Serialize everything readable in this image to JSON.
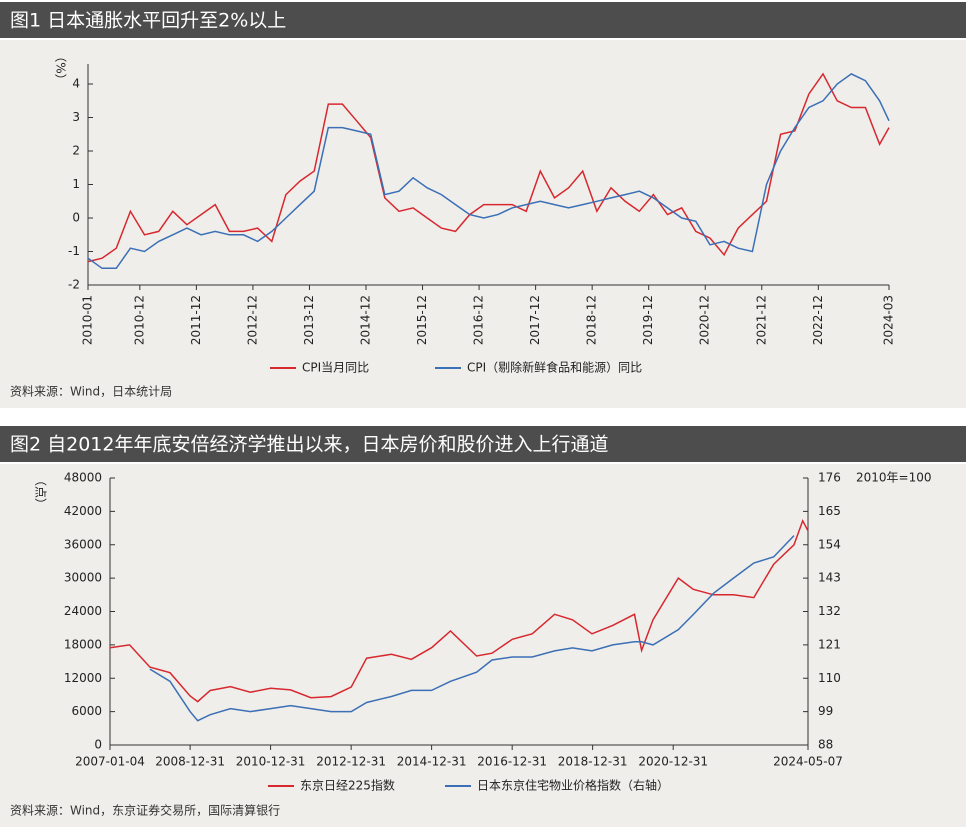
{
  "chart_data": [
    {
      "type": "line",
      "title": "图1  日本通胀水平回升至2%以上",
      "ylabel": "（%）",
      "source": "资料来源：Wind，日本统计局",
      "x": [
        "2010-01",
        "2010-04",
        "2010-07",
        "2010-10",
        "2011-01",
        "2011-04",
        "2011-07",
        "2011-10",
        "2012-01",
        "2012-04",
        "2012-07",
        "2012-10",
        "2013-01",
        "2013-04",
        "2013-07",
        "2013-10",
        "2014-01",
        "2014-04",
        "2014-07",
        "2014-10",
        "2015-01",
        "2015-04",
        "2015-07",
        "2015-10",
        "2016-01",
        "2016-04",
        "2016-07",
        "2016-10",
        "2017-01",
        "2017-04",
        "2017-07",
        "2017-10",
        "2018-01",
        "2018-04",
        "2018-07",
        "2018-10",
        "2019-01",
        "2019-04",
        "2019-07",
        "2019-10",
        "2020-01",
        "2020-04",
        "2020-07",
        "2020-10",
        "2021-01",
        "2021-04",
        "2021-07",
        "2021-10",
        "2022-01",
        "2022-04",
        "2022-07",
        "2022-10",
        "2023-01",
        "2023-04",
        "2023-07",
        "2023-10",
        "2024-01",
        "2024-03"
      ],
      "series": [
        {
          "name": "CPI当月同比",
          "color": "#d7282f",
          "values": [
            -1.3,
            -1.2,
            -0.9,
            0.2,
            -0.5,
            -0.4,
            0.2,
            -0.2,
            0.1,
            0.4,
            -0.4,
            -0.4,
            -0.3,
            -0.7,
            0.7,
            1.1,
            1.4,
            3.4,
            3.4,
            2.9,
            2.4,
            0.6,
            0.2,
            0.3,
            0.0,
            -0.3,
            -0.4,
            0.1,
            0.4,
            0.4,
            0.4,
            0.2,
            1.4,
            0.6,
            0.9,
            1.4,
            0.2,
            0.9,
            0.5,
            0.2,
            0.7,
            0.1,
            0.3,
            -0.4,
            -0.6,
            -1.1,
            -0.3,
            0.1,
            0.5,
            2.5,
            2.6,
            3.7,
            4.3,
            3.5,
            3.3,
            3.3,
            2.2,
            2.7
          ]
        },
        {
          "name": "CPI（剔除新鲜食品和能源）同比",
          "color": "#3b6fb6",
          "values": [
            -1.2,
            -1.5,
            -1.5,
            -0.9,
            -1.0,
            -0.7,
            -0.5,
            -0.3,
            -0.5,
            -0.4,
            -0.5,
            -0.5,
            -0.7,
            -0.4,
            0.0,
            0.4,
            0.8,
            2.7,
            2.7,
            2.6,
            2.5,
            0.7,
            0.8,
            1.2,
            0.9,
            0.7,
            0.4,
            0.1,
            0.0,
            0.1,
            0.3,
            0.4,
            0.5,
            0.4,
            0.3,
            0.4,
            0.5,
            0.6,
            0.7,
            0.8,
            0.6,
            0.3,
            0.0,
            -0.1,
            -0.8,
            -0.7,
            -0.9,
            -1.0,
            1.0,
            2.0,
            2.7,
            3.3,
            3.5,
            4.0,
            4.3,
            4.1,
            3.5,
            2.9
          ]
        }
      ],
      "xlim": [
        "2010-01",
        "2024-03"
      ],
      "xticks": [
        "2010-01",
        "2010-12",
        "2011-12",
        "2012-12",
        "2013-12",
        "2014-12",
        "2015-12",
        "2016-12",
        "2017-12",
        "2018-12",
        "2019-12",
        "2020-12",
        "2021-12",
        "2022-12",
        "2024-03"
      ],
      "ylim": [
        -2,
        4
      ],
      "yticks": [
        -2,
        -1,
        0,
        1,
        2,
        3,
        4
      ]
    },
    {
      "type": "line",
      "title": "图2  自2012年年底安倍经济学推出以来，日本房价和股价进入上行通道",
      "ylabel": "（点）",
      "y2label": "2010年=100",
      "source": "资料来源：Wind，东京证券交易所，国际清算银行",
      "x": [
        "2007-01-04",
        "2007-07-01",
        "2008-01-01",
        "2008-07-01",
        "2008-12-31",
        "2009-03-10",
        "2009-07-01",
        "2010-01-01",
        "2010-07-01",
        "2011-01-01",
        "2011-07-01",
        "2012-01-01",
        "2012-07-01",
        "2012-12-31",
        "2013-05-20",
        "2013-12-31",
        "2014-07-01",
        "2014-12-31",
        "2015-06-20",
        "2016-02-12",
        "2016-07-01",
        "2017-01-01",
        "2017-07-01",
        "2018-01-20",
        "2018-07-01",
        "2018-12-25",
        "2019-07-01",
        "2020-01-15",
        "2020-03-19",
        "2020-07-01",
        "2021-02-15",
        "2021-07-01",
        "2022-01-01",
        "2022-07-01",
        "2023-01-01",
        "2023-07-01",
        "2024-01-01",
        "2024-03-20",
        "2024-05-07"
      ],
      "series": [
        {
          "name": "东京日经225指数",
          "color": "#d7282f",
          "values": [
            17500,
            18000,
            14000,
            13000,
            8800,
            7800,
            9800,
            10500,
            9500,
            10200,
            9900,
            8500,
            8700,
            10400,
            15600,
            16300,
            15400,
            17500,
            20500,
            16000,
            16500,
            19000,
            20000,
            23500,
            22500,
            20000,
            21500,
            23500,
            17000,
            22500,
            30000,
            28000,
            27000,
            27000,
            26500,
            32500,
            36000,
            40300,
            38500
          ]
        },
        {
          "name": "日本东京住宅物业价格指数（右轴）",
          "color": "#3b6fb6",
          "axis": "y2",
          "values": [
            null,
            null,
            113,
            109,
            99,
            96,
            98,
            100,
            99,
            100,
            101,
            100,
            99,
            99,
            102,
            104,
            106,
            106,
            109,
            112,
            116,
            117,
            117,
            119,
            120,
            119,
            121,
            122,
            122,
            121,
            126,
            131,
            138,
            143,
            148,
            150,
            157,
            null,
            null
          ]
        }
      ],
      "xlim": [
        "2007-01-04",
        "2024-05-07"
      ],
      "xticks": [
        "2007-01-04",
        "2008-12-31",
        "2010-12-31",
        "2012-12-31",
        "2014-12-31",
        "2016-12-31",
        "2018-12-31",
        "2020-12-31",
        "2024-05-07"
      ],
      "ylim": [
        0,
        48000
      ],
      "yticks": [
        0,
        6000,
        12000,
        18000,
        24000,
        30000,
        36000,
        42000,
        48000
      ],
      "y2lim": [
        88,
        176
      ],
      "y2ticks": [
        88,
        99,
        110,
        121,
        132,
        143,
        154,
        165,
        176
      ]
    }
  ]
}
